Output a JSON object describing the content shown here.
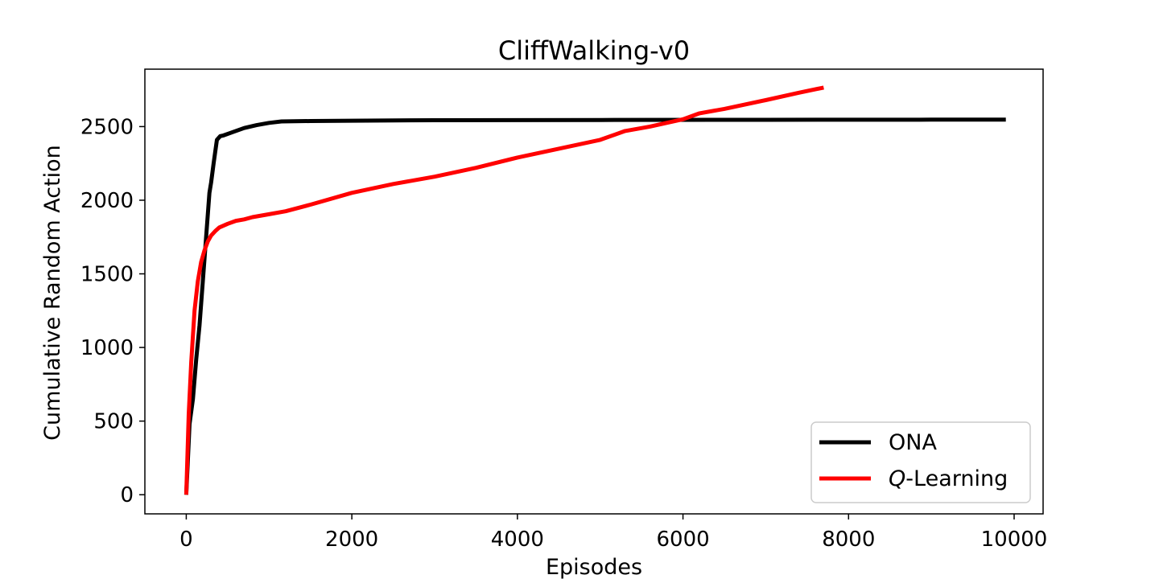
{
  "chart_data": {
    "type": "line",
    "title": "CliffWalking-v0",
    "xlabel": "Episodes",
    "ylabel": "Cumulative Random Action",
    "xlim": [
      -500,
      10350
    ],
    "ylim": [
      -130,
      2890
    ],
    "xticks": [
      0,
      2000,
      4000,
      6000,
      8000,
      10000
    ],
    "yticks": [
      0,
      500,
      1000,
      1500,
      2000,
      2500
    ],
    "xtick_labels": [
      "0",
      "2000",
      "4000",
      "6000",
      "8000",
      "10000"
    ],
    "ytick_labels": [
      "0",
      "500",
      "1000",
      "1500",
      "2000",
      "2500"
    ],
    "grid": false,
    "legend_position": "lower-right",
    "series": [
      {
        "name": "ONA",
        "color": "#000000",
        "x": [
          0,
          40,
          80,
          120,
          160,
          200,
          240,
          280,
          300,
          330,
          370,
          410,
          450,
          550,
          700,
          850,
          1000,
          1150,
          1500,
          2000,
          3000,
          5000,
          7000,
          9000,
          9900
        ],
        "y": [
          0,
          480,
          650,
          920,
          1150,
          1450,
          1750,
          2050,
          2120,
          2250,
          2410,
          2435,
          2440,
          2460,
          2490,
          2510,
          2525,
          2535,
          2538,
          2540,
          2543,
          2545,
          2546,
          2547,
          2547
        ]
      },
      {
        "name": "Q-Learning",
        "name_prefix": "Q",
        "name_suffix": "-Learning",
        "color": "#ff0000",
        "x": [
          0,
          30,
          60,
          100,
          140,
          180,
          220,
          260,
          300,
          350,
          400,
          500,
          600,
          700,
          800,
          1000,
          1200,
          1500,
          2000,
          2500,
          3000,
          3500,
          4000,
          4500,
          5000,
          5300,
          5600,
          6000,
          6200,
          6500,
          7000,
          7400,
          7700
        ],
        "y": [
          0,
          550,
          900,
          1250,
          1450,
          1580,
          1660,
          1720,
          1760,
          1790,
          1815,
          1840,
          1860,
          1870,
          1885,
          1905,
          1925,
          1970,
          2050,
          2110,
          2160,
          2220,
          2290,
          2350,
          2410,
          2470,
          2500,
          2550,
          2590,
          2620,
          2680,
          2730,
          2765
        ]
      }
    ]
  }
}
